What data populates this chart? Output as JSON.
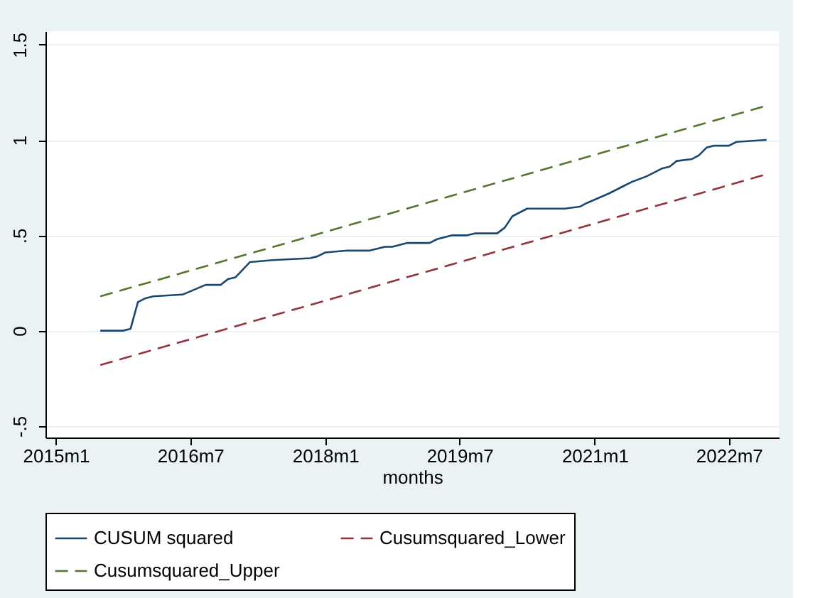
{
  "chart_data": {
    "type": "line",
    "xlabel": "months",
    "x": [
      "2015-07",
      "2015-10",
      "2015-11",
      "2015-12",
      "2016-01",
      "2016-02",
      "2016-06",
      "2016-09",
      "2016-11",
      "2016-12",
      "2017-01",
      "2017-03",
      "2017-06",
      "2017-11",
      "2017-12",
      "2018-01",
      "2018-04",
      "2018-07",
      "2018-09",
      "2018-10",
      "2018-12",
      "2019-03",
      "2019-04",
      "2019-06",
      "2019-08",
      "2019-09",
      "2019-12",
      "2020-01",
      "2020-02",
      "2020-04",
      "2020-09",
      "2020-11",
      "2020-12",
      "2021-03",
      "2021-05",
      "2021-06",
      "2021-08",
      "2021-10",
      "2021-11",
      "2021-12",
      "2022-02",
      "2022-03",
      "2022-04",
      "2022-05",
      "2022-07",
      "2022-08",
      "2022-12"
    ],
    "series": [
      {
        "name": "CUSUM squared",
        "color": "#1a476f",
        "line_style": "solid",
        "values": [
          0,
          0,
          0.01,
          0.15,
          0.17,
          0.18,
          0.19,
          0.24,
          0.24,
          0.27,
          0.28,
          0.36,
          0.37,
          0.38,
          0.39,
          0.41,
          0.42,
          0.42,
          0.44,
          0.44,
          0.46,
          0.46,
          0.48,
          0.5,
          0.5,
          0.51,
          0.51,
          0.54,
          0.6,
          0.64,
          0.64,
          0.65,
          0.67,
          0.72,
          0.76,
          0.78,
          0.81,
          0.85,
          0.86,
          0.89,
          0.9,
          0.92,
          0.96,
          0.97,
          0.97,
          0.99,
          1.0
        ]
      },
      {
        "name": "Cusumsquared_Lower",
        "color": "#90353b",
        "line_style": "dashed",
        "x": [
          "2015-07",
          "2022-12"
        ],
        "values": [
          -0.18,
          0.82
        ]
      },
      {
        "name": "Cusumsquared_Upper",
        "color": "#55752f",
        "line_style": "dashed",
        "x": [
          "2015-07",
          "2022-12"
        ],
        "values": [
          0.18,
          1.18
        ]
      }
    ],
    "xlim": [
      "2014-11-20",
      "2023-01-20"
    ],
    "xticks": [
      {
        "value": "2015-01",
        "label": "2015m1"
      },
      {
        "value": "2016-07",
        "label": "2016m7"
      },
      {
        "value": "2018-01",
        "label": "2018m1"
      },
      {
        "value": "2019-07",
        "label": "2019m7"
      },
      {
        "value": "2021-01",
        "label": "2021m1"
      },
      {
        "value": "2022-07",
        "label": "2022m7"
      }
    ],
    "ylim": [
      -0.56,
      1.57
    ],
    "yticks": [
      {
        "value": -0.5,
        "label": "-.5"
      },
      0,
      {
        "value": 0.5,
        "label": ".5"
      },
      1,
      1.5
    ],
    "grid": "y",
    "legend": "bottom"
  }
}
